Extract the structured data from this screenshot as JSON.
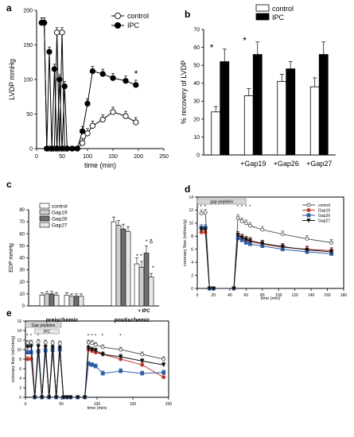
{
  "chart_data": [
    {
      "panel": "a",
      "type": "line",
      "ylabel": "LVDP mmHg",
      "xlabel": "time (min)",
      "xlim": [
        0,
        250
      ],
      "ylim": [
        0,
        200
      ],
      "xticks": [
        "0",
        "50",
        "100",
        "150",
        "200",
        "250"
      ],
      "yticks": [
        "0",
        "50",
        "100",
        "150",
        "200"
      ],
      "legend_position": "top-right",
      "annotation": "*",
      "series": [
        {
          "name": "control",
          "marker": "open-circle",
          "x": [
            10,
            15,
            20,
            25,
            30,
            35,
            40,
            45,
            50,
            55,
            60,
            70,
            80,
            90,
            100,
            110,
            130,
            150,
            175,
            195
          ],
          "y": [
            182,
            182,
            0,
            0,
            0,
            0,
            168,
            0,
            168,
            0,
            0,
            0,
            0,
            8,
            22,
            33,
            42,
            53,
            47,
            38
          ]
        },
        {
          "name": "IPC",
          "marker": "filled-circle",
          "x": [
            10,
            15,
            20,
            25,
            30,
            35,
            40,
            45,
            50,
            55,
            60,
            70,
            80,
            90,
            100,
            110,
            130,
            150,
            175,
            195
          ],
          "y": [
            182,
            182,
            0,
            140,
            0,
            115,
            0,
            100,
            0,
            90,
            0,
            0,
            0,
            25,
            65,
            112,
            108,
            102,
            98,
            92
          ]
        }
      ]
    },
    {
      "panel": "b",
      "type": "bar",
      "ylabel": "% recovery of LVDP",
      "ylim": [
        0,
        70
      ],
      "yticks": [
        "0",
        "10",
        "20",
        "30",
        "40",
        "50",
        "60",
        "70"
      ],
      "categories": [
        "",
        "+Gap19",
        "+Gap26",
        "+Gap27"
      ],
      "legend_position": "top",
      "series": [
        {
          "name": "control",
          "values": [
            24,
            33,
            41,
            38
          ],
          "errors": [
            3,
            4,
            4,
            5
          ]
        },
        {
          "name": "IPC",
          "values": [
            52,
            56,
            48,
            56
          ],
          "errors": [
            7,
            7,
            4,
            7
          ]
        }
      ],
      "annotations": [
        "*",
        "*"
      ]
    },
    {
      "panel": "c",
      "type": "bar",
      "ylabel": "EDP mmHg",
      "ylim": [
        0,
        80
      ],
      "yticks": [
        "0",
        "10",
        "20",
        "30",
        "40",
        "50",
        "60",
        "70",
        "80"
      ],
      "group_labels": [
        "preischemic",
        "postischemic"
      ],
      "subgroup_labels": [
        "",
        "",
        "",
        "+ IPC"
      ],
      "series_names": [
        "control",
        "Gap19",
        "Gap26",
        "Gap27"
      ],
      "values": [
        [
          9,
          10,
          10,
          9
        ],
        [
          9,
          8,
          8,
          8
        ],
        [
          70,
          67,
          64,
          62
        ],
        [
          35,
          32,
          44,
          24
        ]
      ],
      "errors": [
        [
          2,
          2,
          2,
          2
        ],
        [
          2,
          2,
          2,
          2
        ],
        [
          4,
          4,
          4,
          4
        ],
        [
          5,
          5,
          6,
          3
        ]
      ],
      "annotations": [
        "*",
        "*",
        "*",
        "δ",
        "*"
      ]
    },
    {
      "panel": "d",
      "type": "line",
      "ylabel": "coronary flow (ml/min/g)",
      "xlabel": "time (min)",
      "xlim": [
        0,
        180
      ],
      "ylim": [
        0,
        14
      ],
      "xticks": [
        "0",
        "20",
        "40",
        "60",
        "80",
        "100",
        "120",
        "140",
        "160",
        "180"
      ],
      "yticks": [
        "0",
        "2",
        "4",
        "6",
        "8",
        "10",
        "12",
        "14"
      ],
      "bar_label": "gap peptides",
      "legend_position": "top-right",
      "series": [
        {
          "name": "control",
          "color": "#555555",
          "marker": "open-circle",
          "x": [
            5,
            10,
            15,
            20,
            45,
            50,
            55,
            60,
            65,
            80,
            105,
            135,
            165
          ],
          "y": [
            11.5,
            11.6,
            0,
            0,
            0,
            10.8,
            10.3,
            10,
            9.6,
            9,
            8.3,
            7.6,
            7
          ]
        },
        {
          "name": "Gap19",
          "color": "#c0392b",
          "marker": "filled-circle",
          "x": [
            5,
            10,
            15,
            20,
            45,
            50,
            55,
            60,
            65,
            80,
            105,
            135,
            165
          ],
          "y": [
            8.6,
            8.6,
            0,
            0,
            0,
            8,
            7.7,
            7.4,
            7.2,
            6.8,
            6.3,
            6,
            5.8
          ]
        },
        {
          "name": "Gap26",
          "color": "#2e5fa6",
          "marker": "filled-square",
          "x": [
            5,
            10,
            15,
            20,
            45,
            50,
            55,
            60,
            65,
            80,
            105,
            135,
            165
          ],
          "y": [
            9.3,
            9.3,
            0,
            0,
            0,
            7.7,
            7.4,
            7,
            6.8,
            6.5,
            6,
            5.6,
            5.3
          ]
        },
        {
          "name": "Gap27",
          "color": "#111111",
          "marker": "filled-triangle",
          "x": [
            5,
            10,
            15,
            20,
            45,
            50,
            55,
            60,
            65,
            80,
            105,
            135,
            165
          ],
          "y": [
            9,
            9,
            0,
            0,
            0,
            8.2,
            7.8,
            7.5,
            7.3,
            6.9,
            6.4,
            5.9,
            5.6
          ]
        }
      ],
      "annotation": "*"
    },
    {
      "panel": "e",
      "type": "line",
      "ylabel": "coronary flow (ml/min/g)",
      "xlabel": "time (min)",
      "xlim": [
        0,
        200
      ],
      "ylim": [
        0,
        16
      ],
      "xticks": [
        "0",
        "50",
        "100",
        "150",
        "200"
      ],
      "yticks": [
        "0",
        "2",
        "4",
        "6",
        "8",
        "10",
        "12",
        "14",
        "16"
      ],
      "bar_label_1": "Gap peptides",
      "bar_label_2": "IPC",
      "series": [
        {
          "name": "control",
          "color": "#555555",
          "marker": "open-circle",
          "x": [
            3,
            8,
            13,
            18,
            23,
            28,
            33,
            38,
            43,
            48,
            53,
            58,
            63,
            73,
            83,
            88,
            93,
            98,
            108,
            133,
            163,
            193
          ],
          "y": [
            11.4,
            11.5,
            0,
            11.6,
            0,
            11.5,
            0,
            11.4,
            0,
            11.3,
            0,
            0,
            0,
            0,
            0,
            11.5,
            11.4,
            11,
            10.5,
            10,
            9,
            8
          ]
        },
        {
          "name": "Gap19",
          "color": "#c0392b",
          "marker": "filled-circle",
          "x": [
            3,
            8,
            13,
            18,
            23,
            28,
            33,
            38,
            43,
            48,
            53,
            58,
            63,
            73,
            83,
            88,
            93,
            98,
            108,
            133,
            163,
            193
          ],
          "y": [
            8,
            8,
            0,
            9.6,
            0,
            10,
            0,
            10,
            0,
            10,
            0,
            0,
            0,
            0,
            0,
            10,
            9.7,
            9.4,
            9,
            8,
            6.8,
            4.2
          ]
        },
        {
          "name": "Gap26",
          "color": "#2e5fa6",
          "marker": "filled-square",
          "x": [
            3,
            8,
            13,
            18,
            23,
            28,
            33,
            38,
            43,
            48,
            53,
            58,
            63,
            73,
            83,
            88,
            93,
            98,
            108,
            133,
            163,
            193
          ],
          "y": [
            9.4,
            9.4,
            0,
            9.6,
            0,
            9.8,
            0,
            9.9,
            0,
            10,
            0,
            0,
            0,
            0,
            0,
            7,
            6.8,
            6.5,
            5,
            5.5,
            5,
            5.2
          ]
        },
        {
          "name": "Gap27",
          "color": "#111111",
          "marker": "filled-triangle",
          "x": [
            3,
            8,
            13,
            18,
            23,
            28,
            33,
            38,
            43,
            48,
            53,
            58,
            63,
            73,
            83,
            88,
            93,
            98,
            108,
            133,
            163,
            193
          ],
          "y": [
            10.5,
            10.6,
            0,
            10.6,
            0,
            10.5,
            0,
            10.4,
            0,
            10.3,
            0,
            0,
            0,
            0,
            0,
            10.3,
            10,
            9.8,
            9,
            8.5,
            7.6,
            6.8
          ]
        }
      ],
      "annotation": "*"
    }
  ]
}
